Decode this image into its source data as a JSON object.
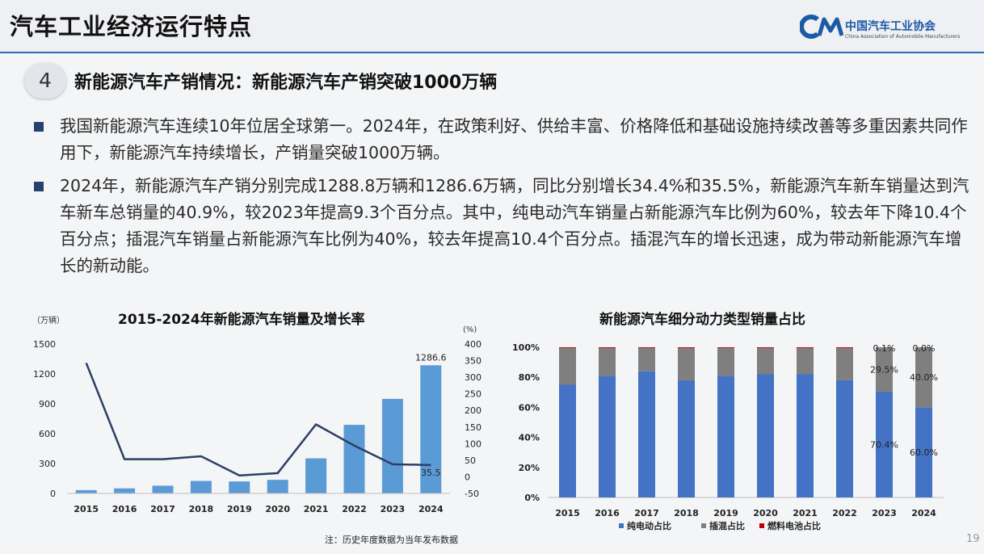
{
  "page": {
    "title": "汽车工业经济运行特点",
    "logo_cn": "中国汽车工业协会",
    "logo_en": "China Association of Automobile Manufacturers",
    "logo_mark": "CM",
    "section_number": "4",
    "section_title": "新能源汽车产销情况：新能源汽车产销突破1000万辆",
    "bullets": [
      "我国新能源汽车连续10年位居全球第一。2024年，在政策利好、供给丰富、价格降低和基础设施持续改善等多重因素共同作用下，新能源汽车持续增长，产销量突破1000万辆。",
      "2024年，新能源汽车产销分别完成1288.8万辆和1286.6万辆，同比分别增长34.4%和35.5%，新能源汽车新车销量达到汽车新车总销量的40.9%，较2023年提高9.3个百分点。其中，纯电动汽车销量占新能源汽车比例为60%，较去年下降10.4个百分点；插混汽车销量占新能源汽车比例为40%，较去年提高10.4个百分点。插混汽车的增长迅速，成为带动新能源汽车增长的新动能。"
    ],
    "note": "注：历史年度数据为当年发布数据",
    "page_number": "19"
  },
  "colors": {
    "bar_blue": "#5b9bd5",
    "line_navy": "#2b3f66",
    "bev_blue": "#4472c4",
    "phev_gray": "#7f7f7f",
    "fcev_red": "#c00000",
    "rule_blue": "#2b6fb6"
  },
  "chart_data": [
    {
      "type": "bar",
      "title": "2015-2024年新能源汽车销量及增长率",
      "categories": [
        "2015",
        "2016",
        "2017",
        "2018",
        "2019",
        "2020",
        "2021",
        "2022",
        "2023",
        "2024"
      ],
      "y_left_unit": "（万辆）",
      "y_right_unit": "(%)",
      "ylim_left": [
        0,
        1500
      ],
      "yticks_left": [
        "0",
        "300",
        "600",
        "900",
        "1200",
        "1500"
      ],
      "ylim_right": [
        -50,
        400
      ],
      "yticks_right": [
        "-50",
        "0",
        "50",
        "100",
        "150",
        "200",
        "250",
        "300",
        "350",
        "400"
      ],
      "series": [
        {
          "kind": "bar",
          "axis": "left",
          "values": [
            33.1,
            50.7,
            77.7,
            125.6,
            120.6,
            136.7,
            352.1,
            688.7,
            949.5,
            1286.6
          ]
        },
        {
          "kind": "line",
          "axis": "right",
          "values": [
            343,
            53,
            53,
            62,
            4,
            11,
            158,
            94,
            38,
            35.5
          ]
        }
      ],
      "data_labels": {
        "bar_2024": "1286.6",
        "line_2024": "35.5"
      },
      "legend": "none",
      "grid": false
    },
    {
      "type": "bar",
      "stacked": true,
      "title": "新能源汽车细分动力类型销量占比",
      "categories": [
        "2015",
        "2016",
        "2017",
        "2018",
        "2019",
        "2020",
        "2021",
        "2022",
        "2023",
        "2024"
      ],
      "ylim": [
        0,
        100
      ],
      "yticks": [
        "0%",
        "20%",
        "40%",
        "60%",
        "80%",
        "100%"
      ],
      "series": [
        {
          "name": "纯电动占比",
          "values": [
            75,
            81,
            84,
            78,
            81,
            82,
            82,
            78,
            70.4,
            60.0
          ]
        },
        {
          "name": "插混占比",
          "values": [
            24.5,
            18.5,
            15.5,
            21.5,
            18.5,
            17.5,
            17.5,
            21.5,
            29.5,
            40.0
          ]
        },
        {
          "name": "燃料电池占比",
          "values": [
            0.5,
            0.5,
            0.5,
            0.5,
            0.5,
            0.5,
            0.5,
            0.5,
            0.1,
            0.0
          ]
        }
      ],
      "data_labels": {
        "2023": [
          "70.4%",
          "29.5%",
          "0.1%"
        ],
        "2024": [
          "60.0%",
          "40.0%",
          "0.0%"
        ]
      },
      "legend": "bottom",
      "grid": false
    }
  ]
}
